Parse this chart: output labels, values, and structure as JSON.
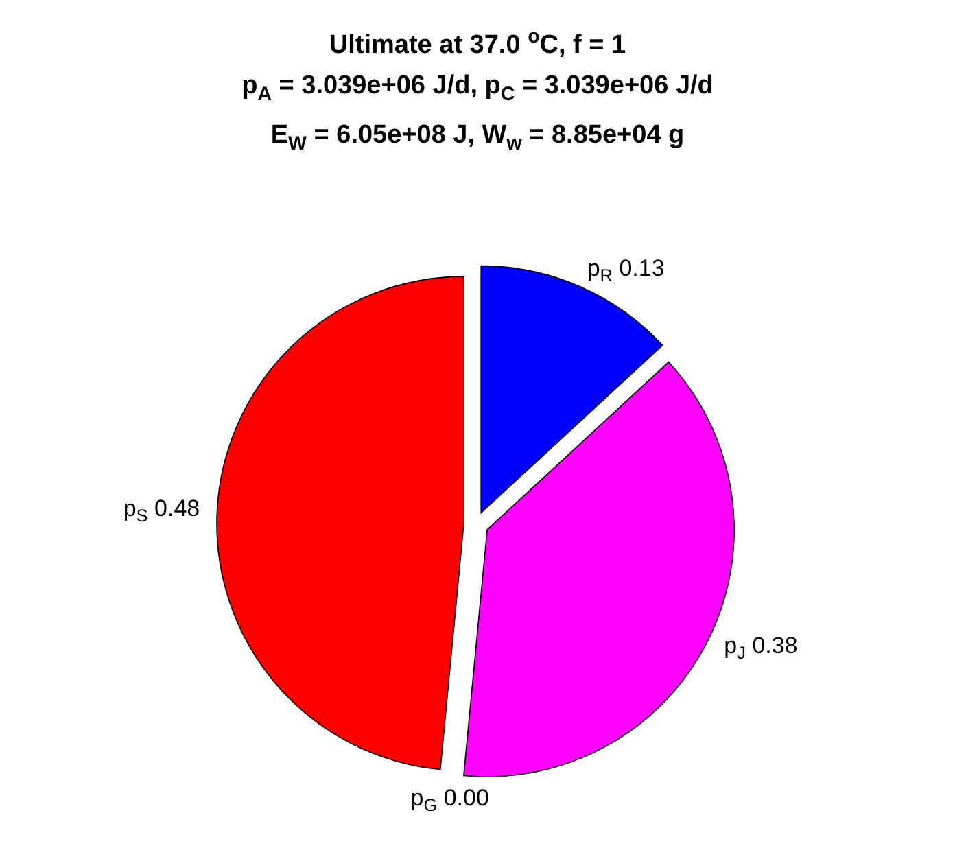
{
  "chart_data": {
    "type": "pie",
    "title": "Ultimate at 37.0 $^{o}$C, f = 1\np$_{A}$ = 3.039e+06 J/d, p$_{C}$ = 3.039e+06 J/d\nE$_{W}$ = 6.05e+08 J, W$_{w}$ = 8.85e+04 g",
    "categories": [
      "p$_{R}$",
      "p$_{J}$",
      "p$_{G}$",
      "p$_{S}$"
    ],
    "values": [
      0.13,
      0.38,
      0.0,
      0.48
    ],
    "value_labels": [
      "0.13",
      "0.38",
      "0.00",
      "0.48"
    ],
    "colors": [
      "#0000ff",
      "#ff00ff",
      "#ffffff",
      "#ff0000"
    ]
  }
}
